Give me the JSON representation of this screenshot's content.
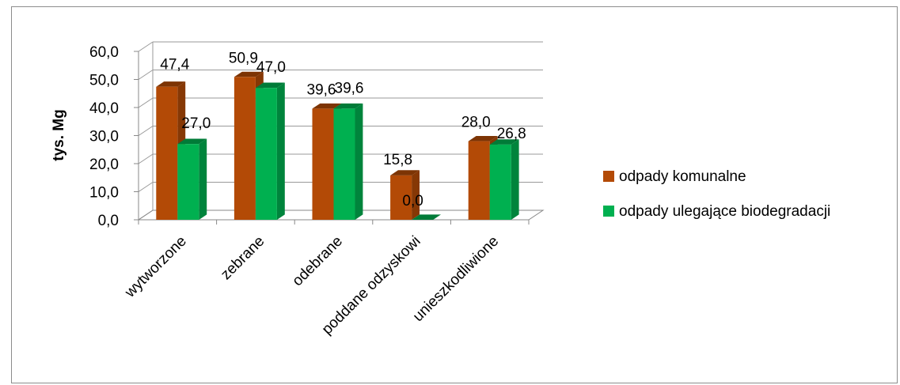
{
  "chart_data": {
    "type": "bar",
    "title": "",
    "xlabel": "",
    "ylabel": "tys.  Mg",
    "ylim": [
      0,
      60
    ],
    "yticks": [
      "0,0",
      "10,0",
      "20,0",
      "30,0",
      "40,0",
      "50,0",
      "60,0"
    ],
    "grid": true,
    "legend_position": "right",
    "categories": [
      "wytworzone",
      "zebrane",
      "odebrane",
      "poddane odzyskowi",
      "unieszkodliwione"
    ],
    "series": [
      {
        "name": "odpady komunalne",
        "color": "#b34a06",
        "values": [
          47.4,
          50.9,
          39.6,
          15.8,
          28.0
        ],
        "labels": [
          "47,4",
          "50,9",
          "39,6",
          "15,8",
          "28,0"
        ]
      },
      {
        "name": "odpady ulegające biodegradacji",
        "color": "#00b050",
        "values": [
          27.0,
          47.0,
          39.6,
          0.0,
          26.8
        ],
        "labels": [
          "27,0",
          "47,0",
          "39,6",
          "0,0",
          "26,8"
        ]
      }
    ]
  }
}
